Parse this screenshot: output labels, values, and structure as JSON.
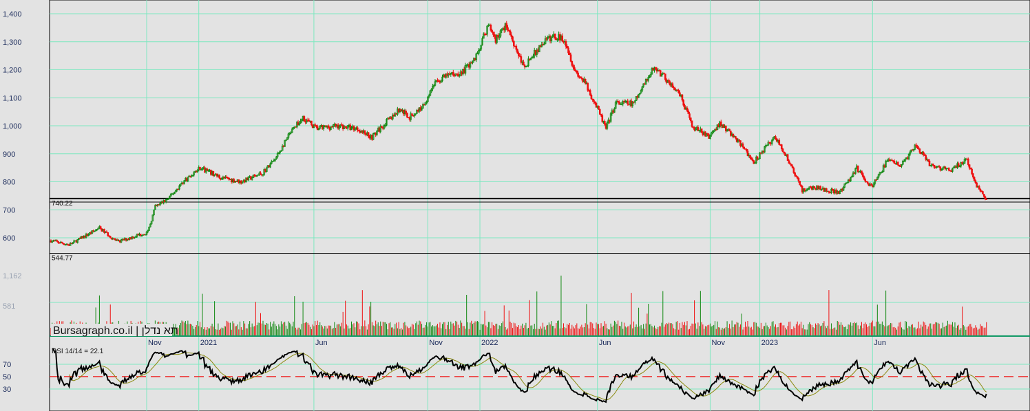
{
  "chart_data": {
    "type": "candlestick",
    "title": "",
    "watermark": "Bursagraph.co.il | תא נדלן",
    "price_axis": {
      "ticks": [
        "1,400",
        "1,300",
        "1,200",
        "1,100",
        "1,000",
        "900",
        "800",
        "700",
        "600"
      ],
      "tick_values": [
        1400,
        1300,
        1200,
        1100,
        1000,
        900,
        800,
        700,
        600
      ],
      "ylim": [
        520,
        1450
      ]
    },
    "price_lines": [
      {
        "label": "740.22",
        "value": 740.22
      },
      {
        "label": "544.77",
        "value": 544.77
      }
    ],
    "secondary_line_value": 727.6,
    "volume_axis": {
      "ticks": [
        "1,162",
        "581"
      ],
      "tick_values": [
        1162,
        581
      ]
    },
    "time_axis": [
      {
        "label": "Nov",
        "day": 79
      },
      {
        "label": "2021",
        "day": 122
      },
      {
        "label": "Jun",
        "day": 217
      },
      {
        "label": "Nov",
        "day": 311
      },
      {
        "label": "2022",
        "day": 354
      },
      {
        "label": "Jun",
        "day": 451
      },
      {
        "label": "Nov",
        "day": 544
      },
      {
        "label": "2023",
        "day": 585
      },
      {
        "label": "Jun",
        "day": 678
      }
    ],
    "total_days": 810,
    "price_waypoints": [
      [
        0,
        590
      ],
      [
        15,
        575
      ],
      [
        40,
        635
      ],
      [
        55,
        585
      ],
      [
        72,
        610
      ],
      [
        80,
        620
      ],
      [
        86,
        710
      ],
      [
        97,
        740
      ],
      [
        109,
        800
      ],
      [
        123,
        850
      ],
      [
        140,
        815
      ],
      [
        157,
        800
      ],
      [
        174,
        830
      ],
      [
        185,
        880
      ],
      [
        197,
        970
      ],
      [
        208,
        1030
      ],
      [
        219,
        990
      ],
      [
        236,
        1000
      ],
      [
        253,
        990
      ],
      [
        265,
        960
      ],
      [
        276,
        1010
      ],
      [
        288,
        1060
      ],
      [
        296,
        1030
      ],
      [
        307,
        1070
      ],
      [
        316,
        1150
      ],
      [
        327,
        1180
      ],
      [
        339,
        1190
      ],
      [
        350,
        1240
      ],
      [
        361,
        1360
      ],
      [
        367,
        1310
      ],
      [
        376,
        1360
      ],
      [
        390,
        1210
      ],
      [
        407,
        1300
      ],
      [
        415,
        1320
      ],
      [
        424,
        1310
      ],
      [
        432,
        1200
      ],
      [
        441,
        1150
      ],
      [
        449,
        1080
      ],
      [
        458,
        990
      ],
      [
        466,
        1080
      ],
      [
        481,
        1080
      ],
      [
        498,
        1210
      ],
      [
        509,
        1160
      ],
      [
        520,
        1100
      ],
      [
        529,
        1000
      ],
      [
        543,
        960
      ],
      [
        552,
        1010
      ],
      [
        566,
        950
      ],
      [
        580,
        870
      ],
      [
        597,
        960
      ],
      [
        606,
        900
      ],
      [
        620,
        770
      ],
      [
        631,
        780
      ],
      [
        651,
        760
      ],
      [
        665,
        850
      ],
      [
        677,
        780
      ],
      [
        691,
        880
      ],
      [
        702,
        860
      ],
      [
        714,
        930
      ],
      [
        725,
        860
      ],
      [
        742,
        840
      ],
      [
        756,
        880
      ],
      [
        762,
        800
      ],
      [
        772,
        740
      ]
    ],
    "rsi": {
      "label": "RSI 14/14 = 22.1",
      "period": 14,
      "signal_period": 14,
      "last_value": 22.1,
      "levels": [
        {
          "label": "70",
          "value": 70
        },
        {
          "label": "50",
          "value": 50
        },
        {
          "label": "30",
          "value": 30
        }
      ]
    },
    "colors": {
      "up": "#118811",
      "down": "#ee1111",
      "grid": "#7de8c0",
      "rsi": "#000000",
      "signal": "#8a8a10",
      "midline": "#ee2222"
    }
  }
}
